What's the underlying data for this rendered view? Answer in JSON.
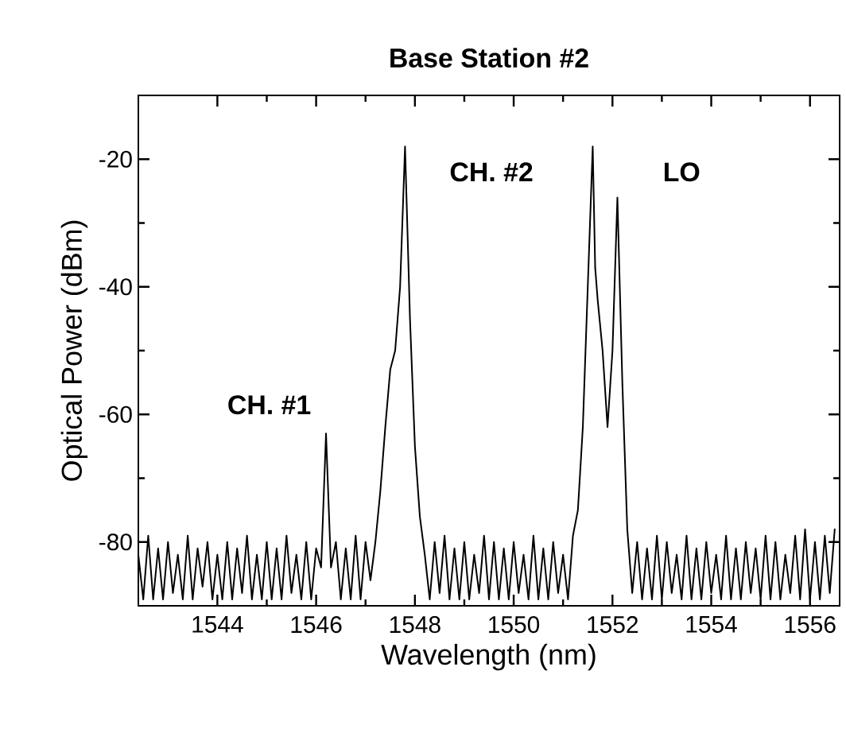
{
  "chart_data": {
    "type": "line",
    "title": "Base Station #2",
    "xlabel": "Wavelength (nm)",
    "ylabel": "Optical Power (dBm)",
    "color": "#000000",
    "x": [
      1542.4,
      1542.5,
      1542.6,
      1542.7,
      1542.8,
      1542.9,
      1543.0,
      1543.1,
      1543.2,
      1543.3,
      1543.4,
      1543.5,
      1543.6,
      1543.7,
      1543.8,
      1543.9,
      1544.0,
      1544.1,
      1544.2,
      1544.3,
      1544.4,
      1544.5,
      1544.6,
      1544.7,
      1544.8,
      1544.9,
      1545.0,
      1545.1,
      1545.2,
      1545.3,
      1545.4,
      1545.5,
      1545.6,
      1545.7,
      1545.8,
      1545.9,
      1546.0,
      1546.1,
      1546.2,
      1546.3,
      1546.4,
      1546.5,
      1546.6,
      1546.7,
      1546.8,
      1546.9,
      1547.0,
      1547.1,
      1547.2,
      1547.3,
      1547.4,
      1547.5,
      1547.6,
      1547.7,
      1547.8,
      1547.9,
      1548.0,
      1548.1,
      1548.2,
      1548.3,
      1548.4,
      1548.5,
      1548.6,
      1548.7,
      1548.8,
      1548.9,
      1549.0,
      1549.1,
      1549.2,
      1549.3,
      1549.4,
      1549.5,
      1549.6,
      1549.7,
      1549.8,
      1549.9,
      1550.0,
      1550.1,
      1550.2,
      1550.3,
      1550.4,
      1550.5,
      1550.6,
      1550.7,
      1550.8,
      1550.9,
      1551.0,
      1551.1,
      1551.2,
      1551.3,
      1551.4,
      1551.5,
      1551.6,
      1551.65,
      1551.7,
      1551.8,
      1551.9,
      1552.0,
      1552.1,
      1552.2,
      1552.3,
      1552.4,
      1552.5,
      1552.6,
      1552.7,
      1552.8,
      1552.9,
      1553.0,
      1553.1,
      1553.2,
      1553.3,
      1553.4,
      1553.5,
      1553.6,
      1553.7,
      1553.8,
      1553.9,
      1554.0,
      1554.1,
      1554.2,
      1554.3,
      1554.4,
      1554.5,
      1554.6,
      1554.7,
      1554.8,
      1554.9,
      1555.0,
      1555.1,
      1555.2,
      1555.3,
      1555.4,
      1555.5,
      1555.6,
      1555.7,
      1555.8,
      1555.9,
      1556.0,
      1556.1,
      1556.2,
      1556.3,
      1556.4,
      1556.5
    ],
    "values": [
      -82,
      -89,
      -79,
      -89,
      -81,
      -89,
      -80,
      -88,
      -82,
      -89,
      -79,
      -89,
      -81,
      -87,
      -80,
      -89,
      -82,
      -89,
      -80,
      -89,
      -81,
      -88,
      -79,
      -89,
      -82,
      -89,
      -80,
      -89,
      -81,
      -89,
      -79,
      -88,
      -82,
      -89,
      -80,
      -89,
      -81,
      -84,
      -63,
      -84,
      -80,
      -89,
      -81,
      -89,
      -79,
      -89,
      -80,
      -86,
      -80,
      -72,
      -62,
      -53,
      -50,
      -40,
      -18,
      -45,
      -65,
      -76,
      -82,
      -89,
      -80,
      -88,
      -79,
      -89,
      -81,
      -89,
      -80,
      -89,
      -82,
      -88,
      -79,
      -89,
      -80,
      -89,
      -81,
      -89,
      -80,
      -88,
      -82,
      -89,
      -79,
      -89,
      -81,
      -89,
      -80,
      -88,
      -82,
      -89,
      -79,
      -75,
      -62,
      -40,
      -18,
      -37,
      -42,
      -50,
      -62,
      -50,
      -26,
      -55,
      -78,
      -88,
      -80,
      -89,
      -81,
      -89,
      -79,
      -89,
      -80,
      -88,
      -82,
      -89,
      -79,
      -89,
      -81,
      -89,
      -80,
      -88,
      -82,
      -89,
      -79,
      -89,
      -81,
      -89,
      -80,
      -88,
      -81,
      -89,
      -79,
      -89,
      -80,
      -89,
      -82,
      -88,
      -79,
      -89,
      -78,
      -89,
      -80,
      -89,
      -79,
      -88,
      -78
    ],
    "xlim": [
      1542.4,
      1556.6
    ],
    "ylim": [
      -90,
      -10
    ],
    "xticks": [
      1544,
      1546,
      1548,
      1550,
      1552,
      1554,
      1556
    ],
    "yticks": [
      -80,
      -60,
      -40,
      -20
    ],
    "annotations": [
      "CH. #1",
      "CH. #2",
      "LO"
    ]
  }
}
